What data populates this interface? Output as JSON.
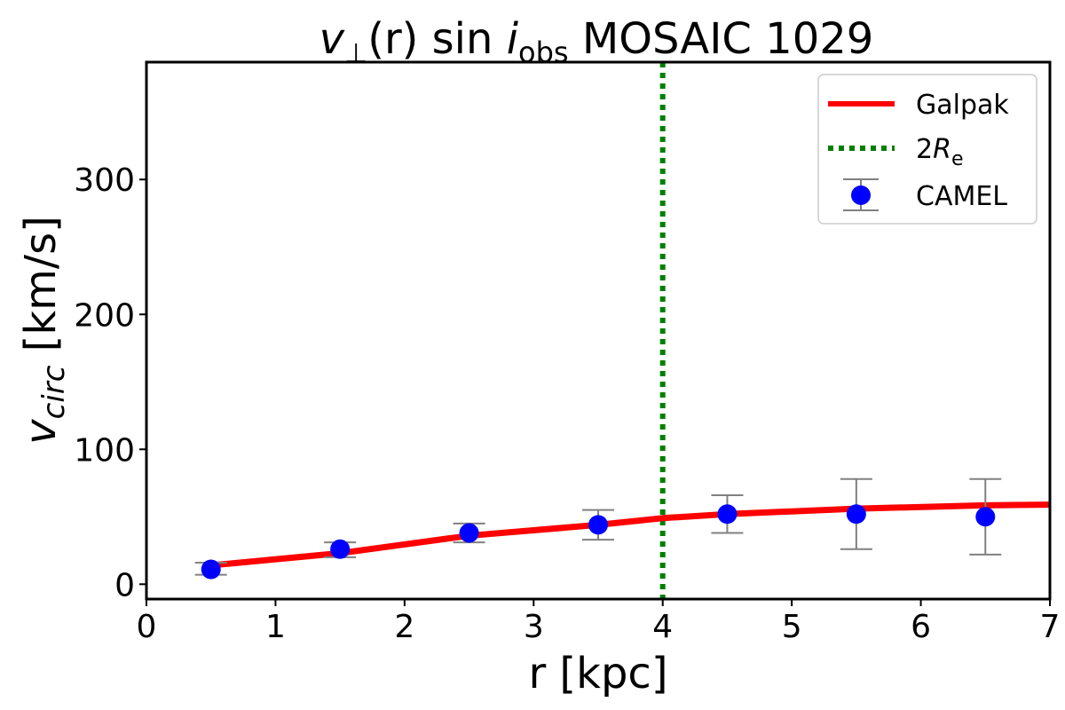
{
  "chart_data": {
    "type": "line",
    "title": {
      "v": "v",
      "perp": "⊥",
      "r": "(r) sin ",
      "i": "i",
      "obs": "obs",
      "rest": " MOSAIC 1029"
    },
    "xlabel": "r [kpc]",
    "ylabel": {
      "v": "v",
      "sub": "circ",
      "unit": " [km/s]"
    },
    "xlim": [
      0,
      7
    ],
    "ylim": [
      -11,
      387
    ],
    "xticks": [
      0,
      1,
      2,
      3,
      4,
      5,
      6,
      7
    ],
    "yticks": [
      0,
      100,
      200,
      300
    ],
    "grid": false,
    "legend_position": "top-right",
    "series": [
      {
        "name": "Galpak",
        "type": "line",
        "color": "#ff0000",
        "x": [
          0.5,
          1.5,
          2.5,
          3.5,
          4.0,
          4.5,
          5.5,
          6.5,
          7.0
        ],
        "y": [
          14,
          23,
          36,
          44,
          49,
          52,
          56,
          58.5,
          59
        ]
      },
      {
        "name": "CAMEL",
        "type": "errorbar",
        "color": "#0000ff",
        "errcolor": "#808080",
        "x": [
          0.5,
          1.5,
          2.5,
          3.5,
          4.5,
          5.5,
          6.5
        ],
        "y": [
          11,
          26,
          38,
          44,
          52,
          52,
          50
        ],
        "yerr_low": [
          7,
          20,
          31,
          33,
          38,
          26,
          22
        ],
        "yerr_high": [
          16,
          31,
          45,
          55,
          66,
          78,
          78
        ]
      }
    ],
    "vlines": [
      {
        "x": 4,
        "color": "#008000",
        "style": "dotted",
        "label": {
          "pre": "2",
          "R": "R",
          "sub": "e"
        }
      }
    ],
    "legend": [
      "Galpak",
      "2Re",
      "CAMEL"
    ]
  }
}
